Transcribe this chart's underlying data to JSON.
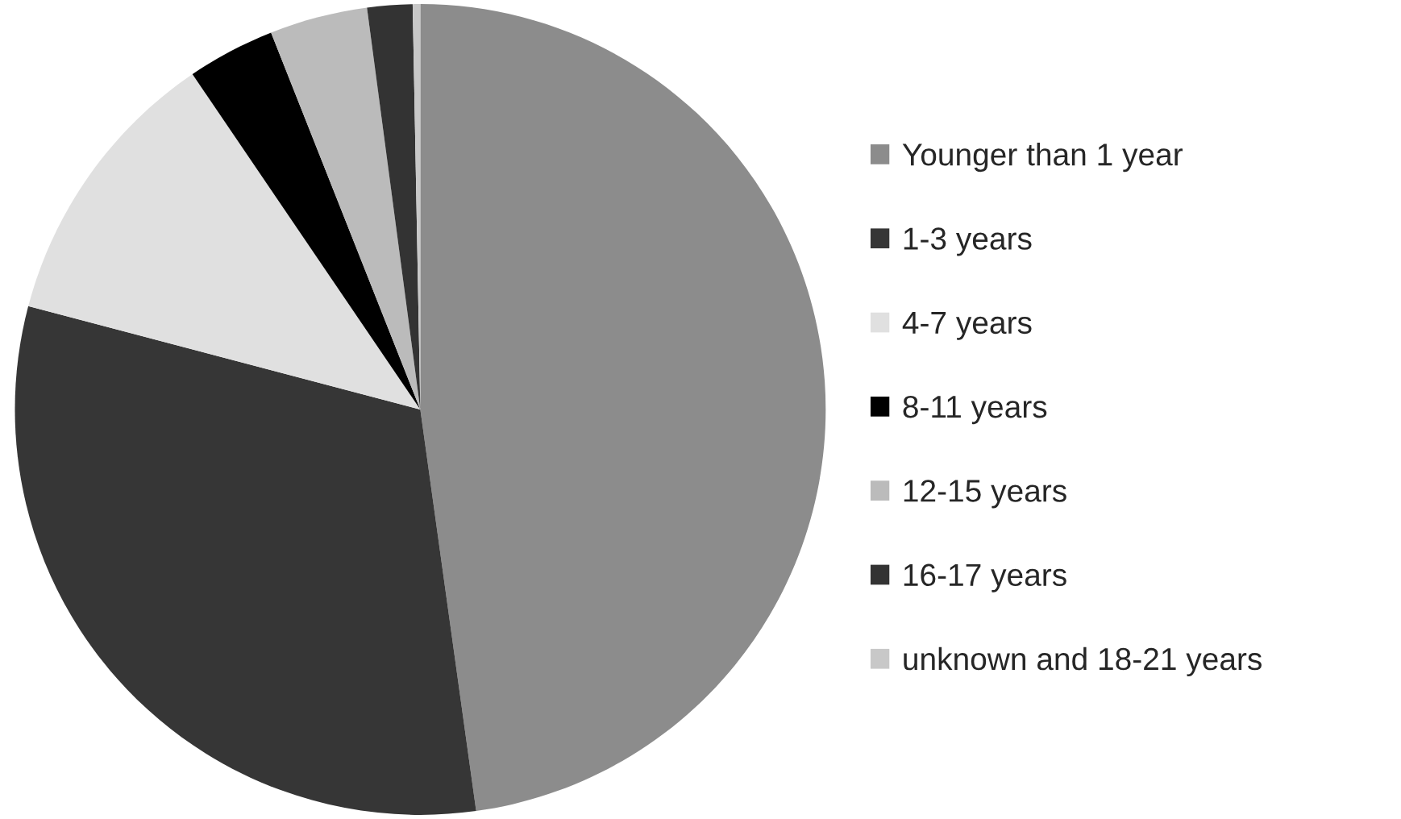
{
  "chart_data": {
    "type": "pie",
    "categories": [
      "Younger than 1 year",
      "1-3 years",
      "4-7 years",
      "8-11 years",
      "12-15 years",
      "16-17 years",
      "unknown and 18-21 years"
    ],
    "values": [
      47.8,
      31.3,
      11.4,
      3.5,
      3.9,
      1.8,
      0.3
    ],
    "colors": [
      "#8c8c8c",
      "#363636",
      "#e0e0e0",
      "#000000",
      "#bbbbbb",
      "#333333",
      "#c8c8c8"
    ],
    "legend": "right"
  }
}
